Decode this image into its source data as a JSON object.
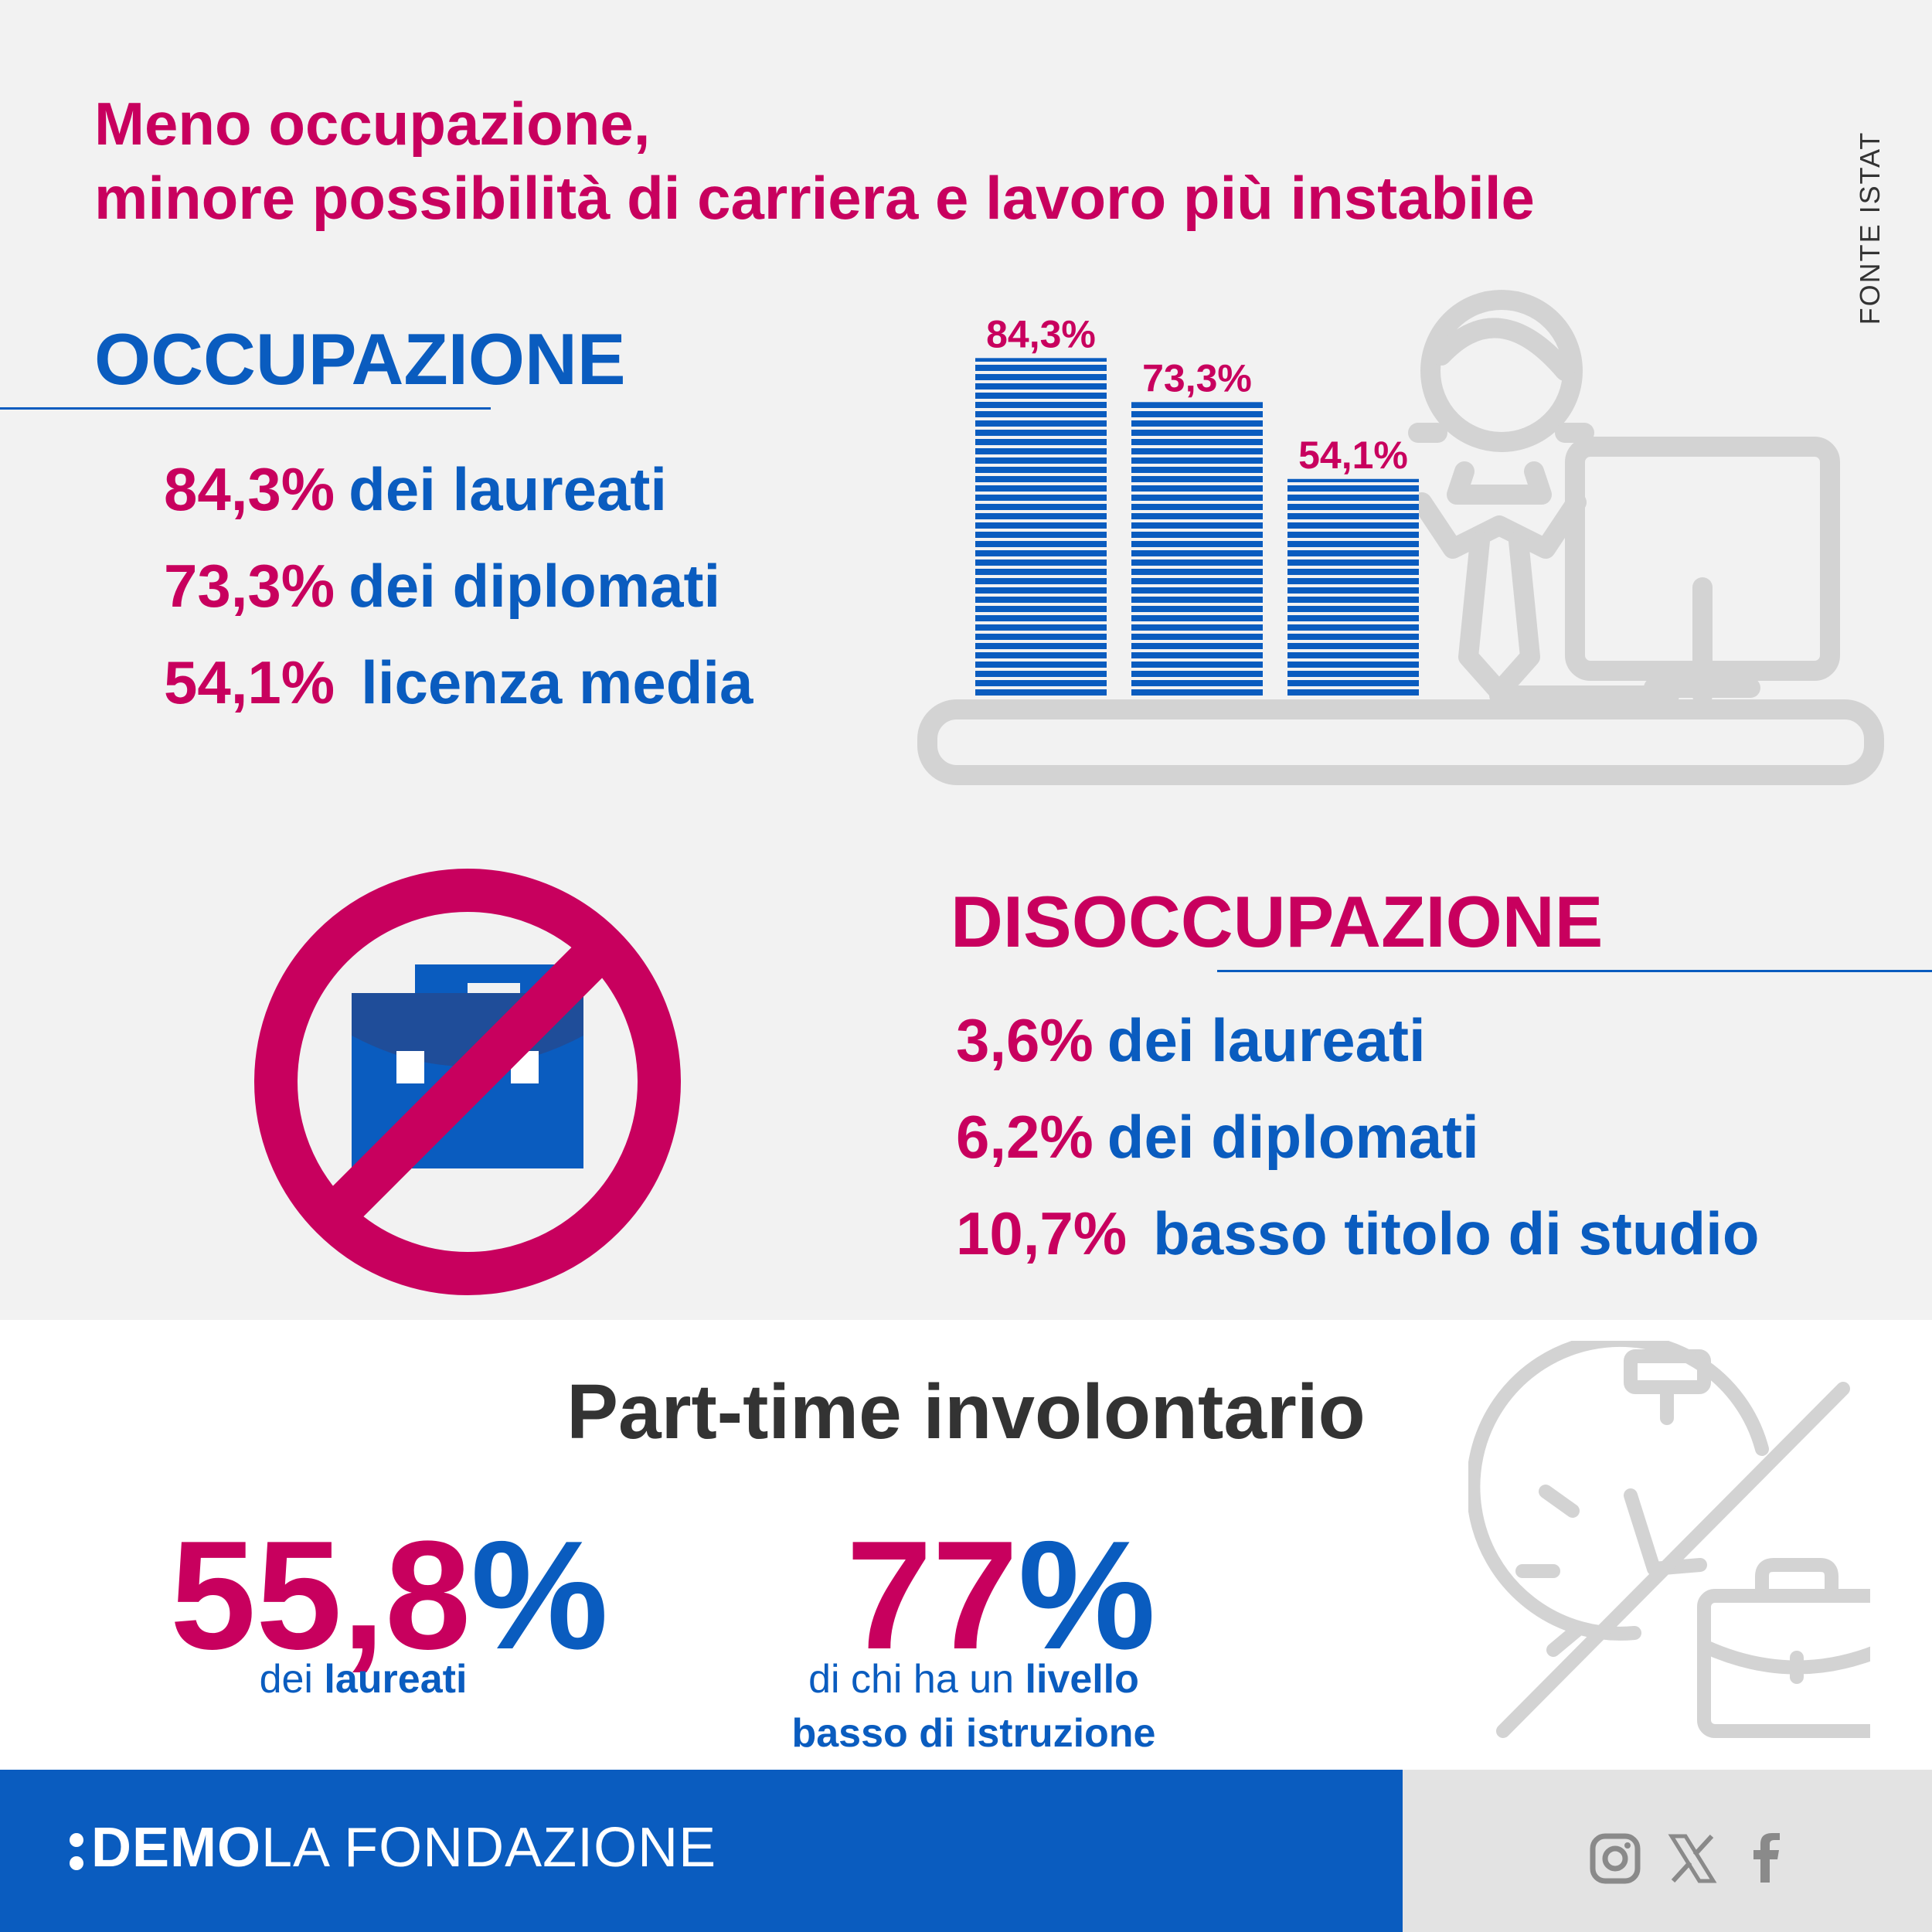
{
  "title": {
    "line1": "Meno occupazione,",
    "line2": "minore possibilità di carriera e lavoro più instabile"
  },
  "source": "FONTE ISTAT",
  "occupazione": {
    "heading": "OCCUPAZIONE",
    "rows": [
      {
        "value": "84,3%",
        "label": "dei laureati"
      },
      {
        "value": "73,3%",
        "label": "dei diplomati"
      },
      {
        "value": "54,1%",
        "label": "licenza media"
      }
    ]
  },
  "disoccupazione": {
    "heading": "DISOCCUPAZIONE",
    "rows": [
      {
        "value": "3,6%",
        "label": "dei laureati"
      },
      {
        "value": "6,2%",
        "label": "dei diplomati"
      },
      {
        "value": "10,7%",
        "label": "basso titolo di studio"
      }
    ]
  },
  "part_time": {
    "title": "Part-time involontario",
    "stat1": {
      "number": "55,8",
      "percent": "%",
      "caption_pre": "dei ",
      "caption_bold": "laureati"
    },
    "stat2": {
      "number": "77",
      "percent": "%",
      "caption_pre": "di chi ha un ",
      "caption_bold": "livello",
      "caption_line2": "basso di istruzione"
    }
  },
  "footer": {
    "brand_bold": "DEMO",
    "brand_thin": "LA FONDAZIONE",
    "social": [
      "instagram-icon",
      "x-icon",
      "facebook-icon"
    ]
  },
  "colors": {
    "magenta": "#c8005e",
    "blue": "#0a5cbf",
    "grey_icon": "#d3d3d3",
    "background": "#f2f2f2"
  },
  "chart_data": {
    "type": "bar",
    "categories": [
      "",
      "",
      ""
    ],
    "values": [
      84.3,
      73.3,
      54.1
    ],
    "value_labels": [
      "84,3%",
      "73,3%",
      "54,1%"
    ],
    "title": "",
    "xlabel": "",
    "ylabel": "",
    "ylim": [
      0,
      100
    ],
    "grid": false
  }
}
